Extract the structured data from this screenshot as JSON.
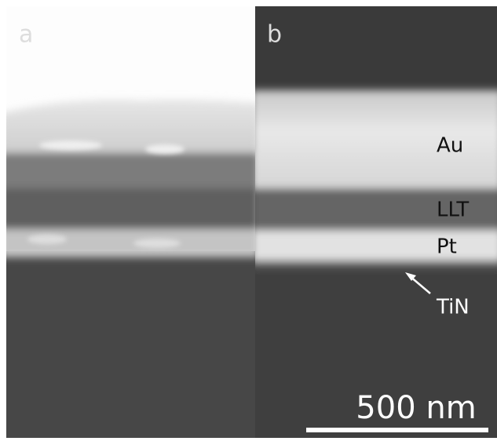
{
  "panels": [
    {
      "label": "a"
    },
    {
      "label": "b"
    }
  ],
  "layers": [
    {
      "label": "Au"
    },
    {
      "label": "LLT"
    },
    {
      "label": "Pt"
    },
    {
      "label": "TiN"
    }
  ],
  "scale_bar": {
    "label": "500 nm"
  }
}
